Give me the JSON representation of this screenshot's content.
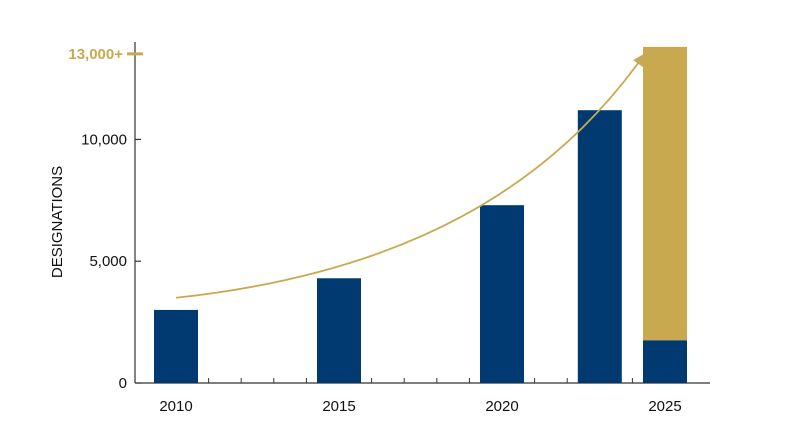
{
  "chart_data": {
    "type": "bar",
    "x_tick_labels": [
      "2010",
      "2015",
      "2020",
      "2025"
    ],
    "ylabel": "DESIGNATIONS",
    "ylim": [
      0,
      14000
    ],
    "y_ticks": [
      {
        "value": 0,
        "label": "0"
      },
      {
        "value": 5000,
        "label": "5,000"
      },
      {
        "value": 10000,
        "label": "10,000"
      }
    ],
    "target": {
      "value": 13800,
      "label": "13,000+"
    },
    "bars": [
      {
        "x": 2010,
        "value": 3000,
        "color": "#003a70"
      },
      {
        "x": 2015,
        "value": 4300,
        "color": "#003a70"
      },
      {
        "x": 2020,
        "value": 7300,
        "color": "#003a70"
      },
      {
        "x": 2023,
        "value": 11200,
        "color": "#003a70"
      },
      {
        "x": 2025,
        "value": 1750,
        "projected_value": 13800,
        "color": "#003a70",
        "projected_color": "#c9a94f"
      }
    ],
    "colors": {
      "primary": "#003a70",
      "accent": "#c9a94f",
      "axis": "#333333"
    },
    "grid": false,
    "legend": "none"
  }
}
